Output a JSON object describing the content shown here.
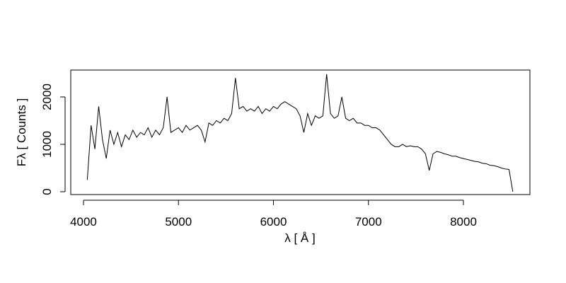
{
  "chart_data": {
    "type": "line",
    "xlabel": "λ [ Å ]",
    "ylabel": "Fλ [ Counts ]",
    "color": "#000000",
    "xlim": [
      3866,
      8700
    ],
    "ylim": [
      -60,
      2567
    ],
    "xticks": [
      4000,
      5000,
      6000,
      7000,
      8000
    ],
    "yticks": [
      0,
      1000,
      2000
    ],
    "x": [
      4040,
      4080,
      4120,
      4160,
      4200,
      4240,
      4280,
      4320,
      4360,
      4400,
      4440,
      4480,
      4520,
      4560,
      4600,
      4640,
      4680,
      4720,
      4760,
      4800,
      4840,
      4880,
      4920,
      4960,
      5000,
      5040,
      5080,
      5120,
      5160,
      5200,
      5240,
      5280,
      5320,
      5360,
      5400,
      5440,
      5480,
      5520,
      5560,
      5600,
      5640,
      5680,
      5720,
      5760,
      5800,
      5840,
      5880,
      5920,
      5960,
      6000,
      6040,
      6080,
      6120,
      6160,
      6200,
      6240,
      6280,
      6320,
      6360,
      6400,
      6440,
      6480,
      6520,
      6560,
      6600,
      6640,
      6680,
      6720,
      6760,
      6800,
      6840,
      6880,
      6920,
      6960,
      7000,
      7040,
      7080,
      7120,
      7160,
      7200,
      7240,
      7280,
      7320,
      7360,
      7400,
      7440,
      7480,
      7520,
      7560,
      7600,
      7640,
      7680,
      7720,
      7760,
      7800,
      7840,
      7880,
      7920,
      7960,
      8000,
      8040,
      8080,
      8120,
      8160,
      8200,
      8240,
      8280,
      8320,
      8360,
      8400,
      8440,
      8480,
      8520
    ],
    "values": [
      250,
      1400,
      900,
      1800,
      1100,
      700,
      1300,
      1000,
      1250,
      950,
      1200,
      1100,
      1300,
      1150,
      1250,
      1200,
      1350,
      1150,
      1300,
      1200,
      1350,
      2000,
      1250,
      1300,
      1350,
      1250,
      1400,
      1300,
      1350,
      1400,
      1300,
      1050,
      1450,
      1400,
      1500,
      1450,
      1550,
      1500,
      1650,
      2400,
      1750,
      1800,
      1700,
      1750,
      1700,
      1800,
      1650,
      1750,
      1700,
      1800,
      1750,
      1850,
      1900,
      1850,
      1800,
      1750,
      1600,
      1250,
      1650,
      1400,
      1600,
      1550,
      1600,
      2480,
      1650,
      1550,
      1600,
      2000,
      1550,
      1500,
      1550,
      1450,
      1450,
      1400,
      1400,
      1350,
      1350,
      1300,
      1200,
      1100,
      1000,
      950,
      950,
      1000,
      950,
      970,
      950,
      950,
      900,
      800,
      450,
      800,
      850,
      830,
      800,
      780,
      750,
      750,
      720,
      700,
      680,
      660,
      640,
      630,
      600,
      590,
      560,
      550,
      530,
      500,
      480,
      470,
      0
    ]
  }
}
